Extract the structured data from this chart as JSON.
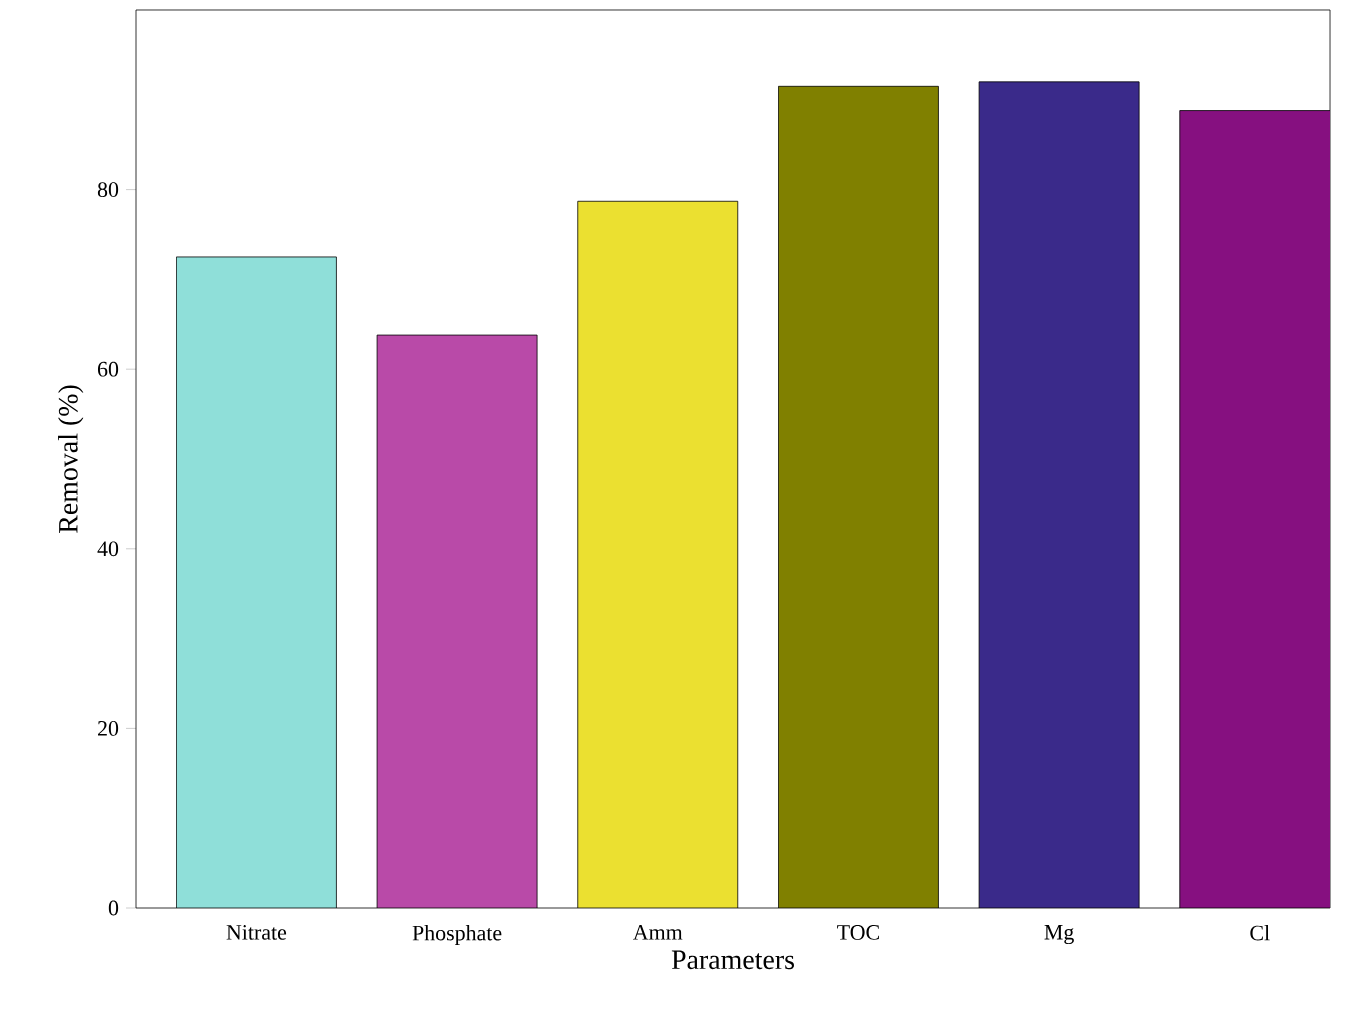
{
  "chart_data": {
    "type": "bar",
    "xlabel": "Parameters",
    "ylabel": "Removal (%)",
    "categories": [
      "Nitrate",
      "Phosphate",
      "Amm",
      "TOC",
      "Mg",
      "Cl"
    ],
    "values": [
      72.5,
      63.8,
      78.7,
      91.5,
      92,
      88.8
    ],
    "colors": [
      "#8fdfd9",
      "#b94aa8",
      "#ebe030",
      "#808000",
      "#3a2a8a",
      "#861080"
    ],
    "ylim": [
      0,
      100
    ],
    "yticks": [
      0,
      20,
      40,
      60,
      80
    ],
    "grid": false
  }
}
